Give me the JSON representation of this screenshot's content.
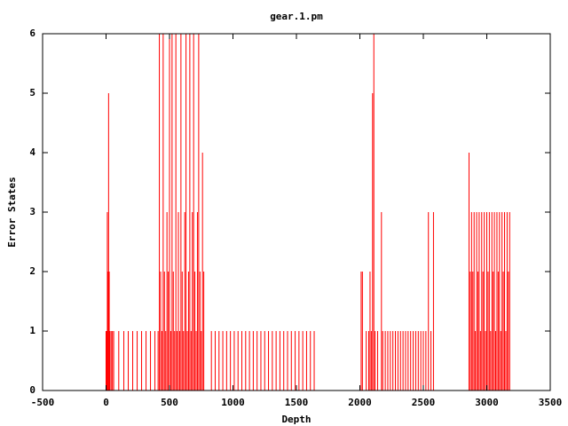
{
  "chart_data": {
    "type": "impulse",
    "title": "gear.1.pm",
    "x_label": "Depth",
    "y_label": "Error States",
    "color": "#ff0000",
    "xlim": [
      -500,
      3500
    ],
    "xticks": [
      -500,
      0,
      500,
      1000,
      1500,
      2000,
      2500,
      3000,
      3500
    ],
    "ylim": [
      0,
      6
    ],
    "yticks": [
      0,
      1,
      2,
      3,
      4,
      5,
      6
    ],
    "x": [
      0,
      5,
      10,
      15,
      20,
      25,
      30,
      40,
      50,
      60,
      100,
      140,
      175,
      210,
      245,
      280,
      315,
      350,
      385,
      410,
      420,
      430,
      440,
      450,
      460,
      470,
      480,
      490,
      500,
      510,
      520,
      530,
      540,
      550,
      560,
      570,
      580,
      590,
      600,
      610,
      620,
      630,
      640,
      650,
      660,
      670,
      680,
      690,
      700,
      710,
      720,
      730,
      740,
      750,
      760,
      770,
      830,
      860,
      890,
      920,
      950,
      980,
      1010,
      1040,
      1070,
      1100,
      1130,
      1160,
      1190,
      1220,
      1250,
      1280,
      1310,
      1340,
      1370,
      1400,
      1430,
      1460,
      1490,
      1520,
      1550,
      1580,
      1610,
      1640,
      2010,
      2020,
      2050,
      2070,
      2080,
      2090,
      2100,
      2110,
      2120,
      2140,
      2170,
      2180,
      2200,
      2220,
      2240,
      2260,
      2280,
      2300,
      2320,
      2340,
      2360,
      2380,
      2400,
      2420,
      2440,
      2460,
      2480,
      2500,
      2520,
      2540,
      2560,
      2580,
      2860,
      2870,
      2880,
      2890,
      2900,
      2910,
      2920,
      2930,
      2940,
      2950,
      2960,
      2970,
      2980,
      2990,
      3000,
      3010,
      3020,
      3030,
      3040,
      3050,
      3060,
      3070,
      3080,
      3090,
      3100,
      3110,
      3120,
      3130,
      3140,
      3150,
      3160,
      3170,
      3180
    ],
    "values": [
      1,
      1,
      3,
      2,
      5,
      2,
      1,
      1,
      1,
      1,
      1,
      1,
      1,
      1,
      1,
      1,
      1,
      1,
      1,
      1,
      6,
      2,
      1,
      6,
      2,
      1,
      3,
      2,
      6,
      1,
      6,
      2,
      1,
      6,
      1,
      3,
      1,
      6,
      2,
      1,
      3,
      6,
      1,
      2,
      6,
      1,
      3,
      6,
      2,
      1,
      3,
      6,
      2,
      1,
      4,
      2,
      1,
      1,
      1,
      1,
      1,
      1,
      1,
      1,
      1,
      1,
      1,
      1,
      1,
      1,
      1,
      1,
      1,
      1,
      1,
      1,
      1,
      1,
      1,
      1,
      1,
      1,
      1,
      1,
      2,
      2,
      1,
      1,
      2,
      1,
      5,
      6,
      1,
      1,
      3,
      1,
      1,
      1,
      1,
      1,
      1,
      1,
      1,
      1,
      1,
      1,
      1,
      1,
      1,
      1,
      1,
      1,
      1,
      3,
      1,
      3,
      4,
      2,
      3,
      2,
      3,
      1,
      3,
      2,
      3,
      1,
      3,
      2,
      3,
      1,
      3,
      2,
      3,
      1,
      3,
      2,
      3,
      1,
      3,
      2,
      3,
      1,
      3,
      2,
      3,
      1,
      3,
      2,
      3
    ]
  }
}
